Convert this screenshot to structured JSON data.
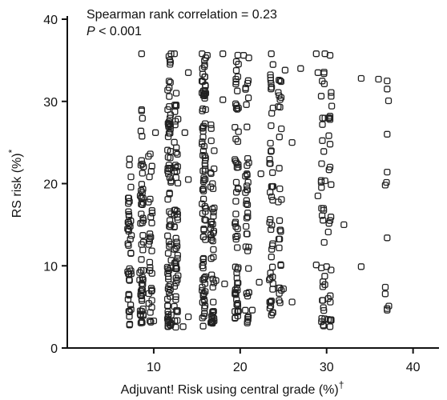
{
  "chart_data": {
    "type": "scatter",
    "title": "",
    "xlabel_main": "Adjuvant! Risk using central grade (%)",
    "xlabel_sup": "†",
    "ylabel_main": "RS risk (%)",
    "ylabel_sup": "*",
    "annotation_line1": "Spearman rank correlation = 0.23",
    "annotation_line2_italic": "P",
    "annotation_line2_rest": " < 0.001",
    "xlim": [
      0,
      43
    ],
    "ylim": [
      0,
      40
    ],
    "x_ticks": [
      10,
      20,
      30,
      40
    ],
    "y_ticks": [
      0,
      10,
      20,
      30,
      40
    ],
    "x_tick_labels": [
      "10",
      "20",
      "30",
      "40"
    ],
    "y_tick_labels": [
      "0",
      "10",
      "20",
      "30",
      "40"
    ],
    "marker": "open-square",
    "grid": false,
    "columns": [
      {
        "x": 7.2,
        "y_min": 2.8,
        "y_max": 23.0,
        "n": 40
      },
      {
        "x": 8.6,
        "y_min": 3.0,
        "y_max": 29.0,
        "n": 55
      },
      {
        "x": 9.6,
        "y_min": 3.0,
        "y_max": 24.0,
        "n": 30
      },
      {
        "x": 11.8,
        "y_min": 2.5,
        "y_max": 35.8,
        "n": 80
      },
      {
        "x": 12.6,
        "y_min": 2.5,
        "y_max": 31.0,
        "n": 55
      },
      {
        "x": 15.8,
        "y_min": 2.6,
        "y_max": 35.8,
        "n": 90
      },
      {
        "x": 16.8,
        "y_min": 3.0,
        "y_max": 31.0,
        "n": 45
      },
      {
        "x": 19.6,
        "y_min": 3.5,
        "y_max": 35.8,
        "n": 60
      },
      {
        "x": 20.8,
        "y_min": 3.0,
        "y_max": 34.0,
        "n": 40
      },
      {
        "x": 23.6,
        "y_min": 4.0,
        "y_max": 35.8,
        "n": 45
      },
      {
        "x": 24.6,
        "y_min": 4.5,
        "y_max": 34.0,
        "n": 30
      },
      {
        "x": 29.6,
        "y_min": 2.5,
        "y_max": 35.8,
        "n": 35
      },
      {
        "x": 30.4,
        "y_min": 3.0,
        "y_max": 35.0,
        "n": 20
      },
      {
        "x": 37.0,
        "y_min": 4.5,
        "y_max": 32.5,
        "n": 7
      }
    ],
    "points": [
      [
        8.6,
        35.8
      ],
      [
        12.0,
        35.8
      ],
      [
        12.4,
        35.8
      ],
      [
        15.6,
        35.8
      ],
      [
        16.2,
        35.6
      ],
      [
        18.0,
        35.8
      ],
      [
        20.4,
        35.6
      ],
      [
        21.0,
        35.3
      ],
      [
        23.6,
        35.8
      ],
      [
        25.2,
        33.8
      ],
      [
        27.0,
        34.0
      ],
      [
        28.8,
        35.8
      ],
      [
        29.8,
        35.8
      ],
      [
        30.4,
        35.6
      ],
      [
        34.0,
        32.8
      ],
      [
        36.0,
        32.7
      ],
      [
        37.0,
        32.5
      ],
      [
        37.0,
        31.5
      ],
      [
        14.0,
        33.5
      ],
      [
        12.6,
        31.0
      ],
      [
        11.8,
        30.6
      ],
      [
        8.6,
        29.0
      ],
      [
        16.0,
        29.0
      ],
      [
        18.0,
        30.2
      ],
      [
        19.8,
        29.2
      ],
      [
        23.8,
        29.2
      ],
      [
        29.0,
        33.5
      ],
      [
        30.4,
        28.2
      ],
      [
        30.4,
        27.8
      ],
      [
        26.0,
        25.0
      ],
      [
        30.4,
        24.8
      ],
      [
        37.0,
        26.0
      ],
      [
        10.2,
        26.2
      ],
      [
        11.8,
        27.2
      ],
      [
        13.6,
        26.2
      ],
      [
        17.0,
        24.0
      ],
      [
        19.6,
        22.5
      ],
      [
        20.8,
        22.2
      ],
      [
        22.4,
        21.2
      ],
      [
        23.6,
        24.0
      ],
      [
        30.4,
        22.0
      ],
      [
        37.0,
        21.4
      ],
      [
        9.6,
        23.6
      ],
      [
        7.2,
        23.0
      ],
      [
        8.6,
        22.8
      ],
      [
        14.0,
        20.5
      ],
      [
        16.8,
        20.0
      ],
      [
        29.0,
        18.5
      ],
      [
        30.4,
        15.5
      ],
      [
        32.0,
        15.0
      ],
      [
        37.0,
        13.4
      ],
      [
        26.0,
        5.6
      ],
      [
        34.0,
        9.9
      ],
      [
        30.0,
        9.9
      ],
      [
        28.8,
        10.1
      ],
      [
        37.0,
        4.6
      ],
      [
        17.2,
        8.2
      ],
      [
        18.2,
        7.8
      ],
      [
        25.0,
        7.2
      ],
      [
        22.2,
        8.0
      ],
      [
        30.4,
        2.6
      ],
      [
        30.4,
        3.4
      ],
      [
        19.8,
        4.5
      ],
      [
        21.4,
        4.6
      ],
      [
        13.4,
        2.6
      ],
      [
        14.0,
        3.8
      ],
      [
        10.0,
        3.3
      ],
      [
        7.2,
        2.8
      ],
      [
        7.2,
        4.4
      ],
      [
        8.6,
        3.2
      ]
    ]
  }
}
